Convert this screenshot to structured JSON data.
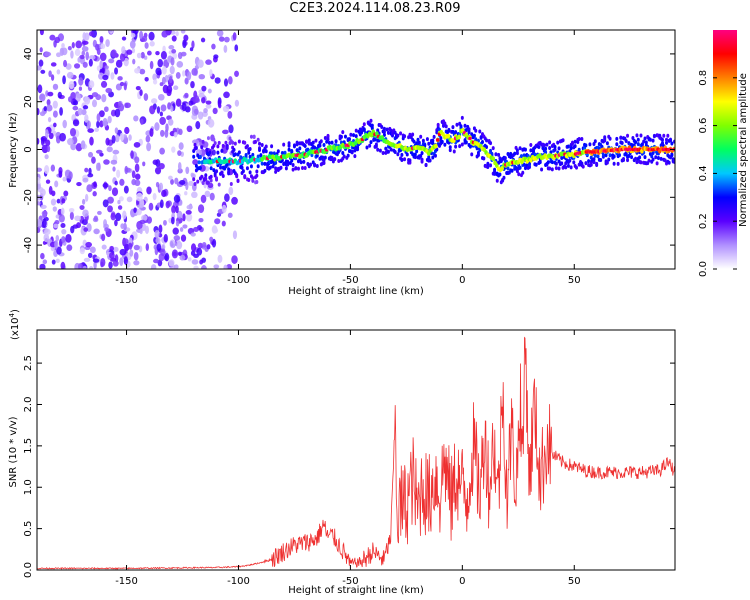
{
  "page": {
    "title": "C2E3.2024.114.08.23.R09"
  },
  "chart_data": [
    {
      "type": "heatmap",
      "xlabel": "Height of straight line (km)",
      "ylabel": "Frequency (Hz)",
      "xlim": [
        -190,
        95
      ],
      "ylim": [
        -50,
        50
      ],
      "xticks": [
        -150,
        -100,
        -50,
        0,
        50
      ],
      "xtick_labels": [
        "-150",
        "-100",
        "-50",
        "0",
        "50"
      ],
      "yticks": [
        -40,
        -20,
        0,
        20,
        40
      ],
      "ytick_labels": [
        "-40",
        "-20",
        "0",
        "20",
        "40"
      ],
      "signal_ridge": {
        "x": [
          -115,
          -100,
          -90,
          -80,
          -70,
          -60,
          -50,
          -45,
          -40,
          -35,
          -30,
          -25,
          -20,
          -15,
          -12,
          -10,
          -8,
          -5,
          -2,
          0,
          2,
          5,
          8,
          10,
          13,
          15,
          17,
          20,
          25,
          30,
          35,
          40,
          45,
          50,
          55,
          60,
          70,
          80,
          90,
          95
        ],
        "y": [
          -5,
          -5,
          -4,
          -3,
          -2,
          0,
          2,
          4,
          7,
          4,
          2,
          0,
          1,
          -1,
          1,
          7,
          6,
          4,
          5,
          8,
          6,
          3,
          2,
          -1,
          -3,
          -7,
          -8,
          -6,
          -5,
          -4,
          -3,
          -3,
          -2,
          -2,
          -1,
          -1,
          0,
          0,
          0,
          0
        ]
      },
      "colorbar": {
        "label": "Normalized spectral amplitude",
        "range": [
          0,
          1
        ],
        "ticks": [
          0.0,
          0.2,
          0.4,
          0.6,
          0.8
        ],
        "tick_labels": [
          "0.0",
          "0.2",
          "0.4",
          "0.6",
          "0.8"
        ],
        "colors": [
          "#ffffff",
          "#b090ff",
          "#5a00ff",
          "#0000ff",
          "#00c8ff",
          "#00ff60",
          "#80ff00",
          "#ffff00",
          "#ff8000",
          "#ff0000",
          "#ff0080"
        ]
      }
    },
    {
      "type": "line",
      "xlabel": "Height of straight line (km)",
      "ylabel": "SNR (10 * v/v)",
      "y_scale_label": "(x10",
      "y_scale_exponent": "4",
      "y_scale_suffix": ")",
      "xlim": [
        -190,
        95
      ],
      "ylim": [
        0,
        2.9
      ],
      "xticks": [
        -150,
        -100,
        -50,
        0,
        50
      ],
      "xtick_labels": [
        "-150",
        "-100",
        "-50",
        "0",
        "50"
      ],
      "yticks": [
        0.0,
        0.5,
        1.0,
        1.5,
        2.0,
        2.5
      ],
      "ytick_labels": [
        "0.0",
        "0.5",
        "1.0",
        "1.5",
        "2.0",
        "2.5"
      ],
      "series": [
        {
          "color": "#ee3030",
          "x": [
            -190,
            -150,
            -110,
            -100,
            -95,
            -90,
            -85,
            -80,
            -75,
            -70,
            -65,
            -62,
            -60,
            -58,
            -55,
            -50,
            -45,
            -40,
            -35,
            -32,
            -30,
            -29,
            -28,
            -25,
            -22,
            -20,
            -18,
            -15,
            -12,
            -10,
            -8,
            -5,
            -3,
            0,
            2,
            5,
            8,
            10,
            12,
            14,
            16,
            18,
            20,
            22,
            24,
            26,
            27,
            28,
            30,
            32,
            35,
            38,
            40,
            45,
            50,
            55,
            60,
            70,
            80,
            88,
            92,
            95
          ],
          "y": [
            0.02,
            0.02,
            0.03,
            0.04,
            0.06,
            0.09,
            0.13,
            0.22,
            0.3,
            0.33,
            0.38,
            0.55,
            0.4,
            0.42,
            0.3,
            0.08,
            0.1,
            0.22,
            0.12,
            0.4,
            1.8,
            0.6,
            0.75,
            0.8,
            1.1,
            0.7,
            1.05,
            0.85,
            1.15,
            0.9,
            1.35,
            0.8,
            1.15,
            1.0,
            0.85,
            1.5,
            0.9,
            1.7,
            0.95,
            1.6,
            0.85,
            2.15,
            0.95,
            1.7,
            1.0,
            2.1,
            1.2,
            2.9,
            1.05,
            2.0,
            1.1,
            1.6,
            1.4,
            1.3,
            1.25,
            1.2,
            1.18,
            1.18,
            1.18,
            1.2,
            1.3,
            1.18
          ]
        }
      ]
    }
  ]
}
